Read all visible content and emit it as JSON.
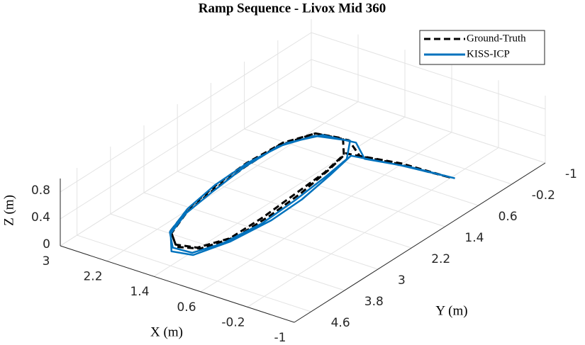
{
  "chart_data": {
    "type": "line3d",
    "title": "Ramp Sequence - Livox Mid 360",
    "xlabel": "X (m)",
    "ylabel": "Y (m)",
    "zlabel": "Z (m)",
    "xlim": [
      -1,
      3
    ],
    "xticks": [
      3,
      2.2,
      1.4,
      0.6,
      -0.2,
      -1
    ],
    "ylim": [
      -1,
      5
    ],
    "yticks": [
      -1,
      -0.2,
      0.6,
      1.4,
      2.2,
      3,
      3.8,
      4.6
    ],
    "zlim": [
      0,
      1
    ],
    "zticks": [
      0,
      0.4,
      0.8
    ],
    "grid": true,
    "legend": "northeast",
    "series": [
      {
        "name": "Ground-Truth",
        "color": "#000000",
        "linestyle": "--",
        "x": [
          -0.3,
          0.5,
          1.1,
          1.5,
          2.0,
          2.2,
          2.25,
          2.2,
          2.1,
          1.9,
          1.6,
          1.3,
          1.1,
          1.1,
          1.15,
          1.2,
          1.3,
          1.6,
          2.0,
          2.2,
          2.2,
          2.15,
          2.05,
          1.85,
          1.55,
          1.25,
          1.05,
          1.05,
          1.1,
          1.2,
          1.3,
          0.6,
          -0.3
        ],
        "y": [
          0.3,
          0.35,
          0.5,
          0.2,
          0.3,
          0.8,
          1.6,
          2.4,
          3.2,
          3.9,
          4.2,
          4.1,
          3.6,
          2.8,
          2.0,
          1.2,
          0.6,
          0.2,
          0.3,
          0.9,
          1.7,
          2.5,
          3.3,
          3.95,
          4.25,
          4.1,
          3.5,
          2.7,
          1.9,
          1.1,
          0.55,
          0.4,
          0.3
        ],
        "z": [
          0.1,
          0.1,
          0.1,
          0.1,
          0.1,
          0.1,
          0.1,
          0.1,
          0.1,
          0.1,
          0.1,
          0.1,
          0.1,
          0.1,
          0.1,
          0.1,
          0.1,
          0.1,
          0.1,
          0.1,
          0.1,
          0.1,
          0.1,
          0.1,
          0.1,
          0.1,
          0.1,
          0.1,
          0.1,
          0.1,
          0.1,
          0.1,
          0.1
        ]
      },
      {
        "name": "KISS-ICP",
        "color": "#0072BD",
        "linestyle": "-",
        "x": [
          -0.35,
          0.4,
          1.05,
          1.45,
          1.95,
          2.2,
          2.3,
          2.25,
          2.15,
          1.95,
          1.65,
          1.35,
          1.15,
          1.05,
          1.1,
          1.15,
          1.25,
          1.55,
          2.05,
          2.25,
          2.25,
          2.2,
          2.1,
          1.9,
          1.6,
          1.3,
          1.1,
          1.0,
          1.05,
          1.15,
          1.25,
          0.5,
          -0.35
        ],
        "y": [
          0.25,
          0.3,
          0.45,
          0.1,
          0.2,
          0.7,
          1.5,
          2.35,
          3.15,
          3.85,
          4.2,
          4.15,
          3.7,
          2.9,
          2.05,
          1.25,
          0.6,
          0.1,
          0.25,
          0.85,
          1.65,
          2.45,
          3.25,
          3.9,
          4.3,
          4.2,
          3.6,
          2.75,
          1.95,
          1.15,
          0.5,
          0.35,
          0.25
        ],
        "z": [
          0.08,
          0.06,
          0.05,
          0.04,
          0.05,
          0.06,
          0.05,
          0.07,
          0.06,
          0.05,
          0.04,
          0.03,
          0.05,
          0.06,
          0.05,
          0.07,
          0.05,
          0.04,
          0.03,
          0.05,
          0.06,
          0.04,
          0.05,
          0.06,
          0.04,
          0.03,
          0.05,
          0.06,
          0.04,
          0.05,
          0.06,
          0.07,
          0.08
        ]
      }
    ]
  }
}
